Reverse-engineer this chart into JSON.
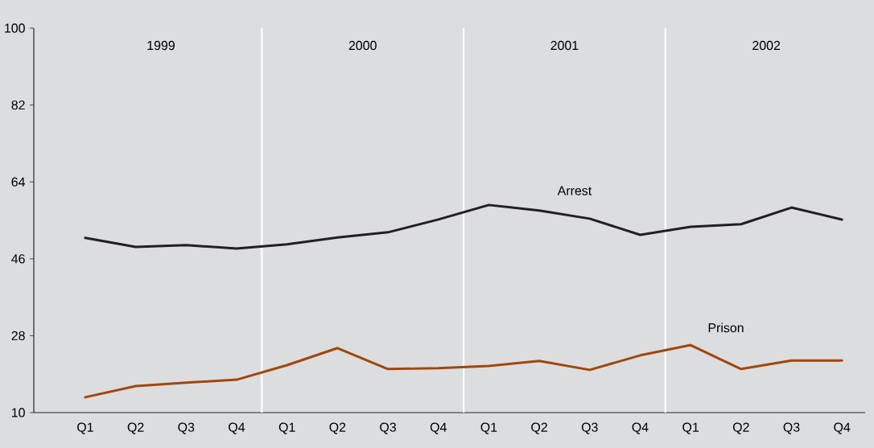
{
  "chart_data": {
    "type": "line",
    "categories": [
      "Q1",
      "Q2",
      "Q3",
      "Q4",
      "Q1",
      "Q2",
      "Q3",
      "Q4",
      "Q1",
      "Q2",
      "Q3",
      "Q4",
      "Q1",
      "Q2",
      "Q3",
      "Q4"
    ],
    "series": [
      {
        "name": "Arrest",
        "color": "#231f20",
        "values": [
          50.9,
          48.8,
          49.2,
          48.4,
          49.4,
          51.0,
          52.2,
          55.2,
          58.6,
          57.3,
          55.4,
          51.6,
          53.5,
          54.1,
          58.0,
          55.2
        ]
      },
      {
        "name": "Prison",
        "color": "#a0470a",
        "values": [
          13.6,
          16.2,
          17.0,
          17.7,
          21.1,
          25.1,
          20.2,
          20.4,
          20.9,
          22.1,
          20.0,
          23.4,
          25.8,
          20.2,
          22.2,
          22.2
        ]
      }
    ],
    "annotations": [
      "1999",
      "2000",
      "2001",
      "2002"
    ],
    "ylim": [
      10,
      100
    ],
    "yticks": [
      10,
      28,
      46,
      64,
      82,
      100
    ],
    "grid": false,
    "marker": "none",
    "line_style": "solid"
  }
}
